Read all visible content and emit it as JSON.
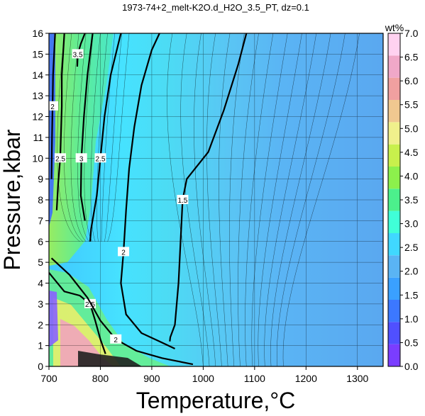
{
  "chart_data": {
    "type": "heatmap",
    "title": "1973-74+2_melt-K2O.d_H2O_3.5_PT, dz=0.1",
    "xlabel": "Temperature,°C",
    "ylabel": "Pressure,kbar",
    "xlim": [
      700,
      1350
    ],
    "ylim": [
      0,
      16
    ],
    "x_ticks": [
      700,
      800,
      900,
      1000,
      1100,
      1200,
      1300
    ],
    "x_tick_labels": [
      "700",
      "800",
      "900",
      "1000",
      "1100",
      "1200",
      "1300"
    ],
    "y_ticks": [
      0,
      1,
      2,
      3,
      4,
      5,
      6,
      7,
      8,
      9,
      10,
      11,
      12,
      13,
      14,
      15,
      16
    ],
    "y_tick_labels": [
      "0",
      "1",
      "2",
      "3",
      "4",
      "5",
      "6",
      "7",
      "8",
      "9",
      "10",
      "11",
      "12",
      "13",
      "14",
      "15",
      "16"
    ],
    "grid": true,
    "colorbar": {
      "label": "wt%",
      "range": [
        0.0,
        7.0
      ],
      "ticks": [
        0.0,
        0.5,
        1.0,
        1.5,
        2.0,
        2.5,
        3.0,
        3.5,
        4.0,
        4.5,
        5.0,
        5.5,
        6.0,
        6.5,
        7.0
      ],
      "tick_labels": [
        "0.0",
        "0.5",
        "1.0",
        "1.5",
        "2.0",
        "2.5",
        "3.0",
        "3.5",
        "4.0",
        "4.5",
        "5.0",
        "5.5",
        "6.0",
        "6.5",
        "7.0"
      ],
      "colors": [
        "#7a3dff",
        "#5050ff",
        "#3c78ff",
        "#3aa0ff",
        "#5ab4f4",
        "#40d8ff",
        "#40ffd8",
        "#4cf08c",
        "#8cf04c",
        "#c8f04c",
        "#f0f08c",
        "#f0c890",
        "#f0a0a0",
        "#f0a8c8",
        "#ffd2f0"
      ]
    },
    "contours": [
      {
        "level": "1.5",
        "points": [
          [
            1084,
            16
          ],
          [
            1068,
            14.5
          ],
          [
            1040,
            12.3
          ],
          [
            1010,
            10.3
          ],
          [
            968,
            9
          ],
          [
            960,
            8
          ],
          [
            956,
            6
          ],
          [
            952,
            4
          ],
          [
            945,
            2
          ],
          [
            936,
            1.4
          ],
          [
            935,
            1.2
          ]
        ]
      },
      {
        "level": "2",
        "points": [
          [
            915,
            16
          ],
          [
            900,
            15.2
          ],
          [
            880,
            13.5
          ],
          [
            866,
            11.5
          ],
          [
            856,
            9.5
          ],
          [
            850,
            7.5
          ],
          [
            845,
            5.5
          ],
          [
            840,
            4
          ],
          [
            850,
            2.5
          ],
          [
            880,
            1.6
          ],
          [
            915,
            1.2
          ],
          [
            945,
            0.85
          ]
        ]
      },
      {
        "level": "2.5",
        "points": [
          [
            840,
            16
          ],
          [
            820,
            14
          ],
          [
            808,
            12
          ],
          [
            800,
            10
          ],
          [
            793,
            8.2
          ],
          [
            782,
            6.6
          ],
          [
            780,
            6
          ]
        ]
      },
      {
        "level": "3",
        "points": [
          [
            785,
            16
          ],
          [
            775,
            14
          ],
          [
            768,
            12
          ],
          [
            763,
            10
          ],
          [
            762,
            8.2
          ],
          [
            770,
            7
          ]
        ]
      },
      {
        "level": "2.5",
        "points": [
          [
            730,
            16
          ],
          [
            725,
            14
          ],
          [
            725,
            12.5
          ],
          [
            722,
            10
          ],
          [
            718,
            8.8
          ],
          [
            715,
            7.5
          ]
        ]
      },
      {
        "level": "2",
        "points": [
          [
            712,
            16
          ],
          [
            708,
            14
          ],
          [
            707,
            12.5
          ],
          [
            706,
            11
          ],
          [
            705,
            9
          ]
        ]
      },
      {
        "level": "3.5",
        "points": [
          [
            770,
            16
          ],
          [
            762,
            15.5
          ],
          [
            756,
            15
          ],
          [
            755,
            14.4
          ]
        ]
      },
      {
        "level": "2.5",
        "points": [
          [
            700,
            4.5
          ],
          [
            730,
            3.6
          ],
          [
            760,
            3.4
          ],
          [
            780,
            3.0
          ],
          [
            790,
            2.2
          ],
          [
            800,
            1.3
          ],
          [
            810,
            0.6
          ]
        ]
      },
      {
        "level": "2",
        "points": [
          [
            705,
            5.2
          ],
          [
            740,
            4.4
          ],
          [
            775,
            3.3
          ],
          [
            800,
            2.2
          ],
          [
            830,
            1.3
          ],
          [
            870,
            0.75
          ],
          [
            920,
            0.4
          ],
          [
            980,
            0.1
          ]
        ]
      }
    ]
  }
}
